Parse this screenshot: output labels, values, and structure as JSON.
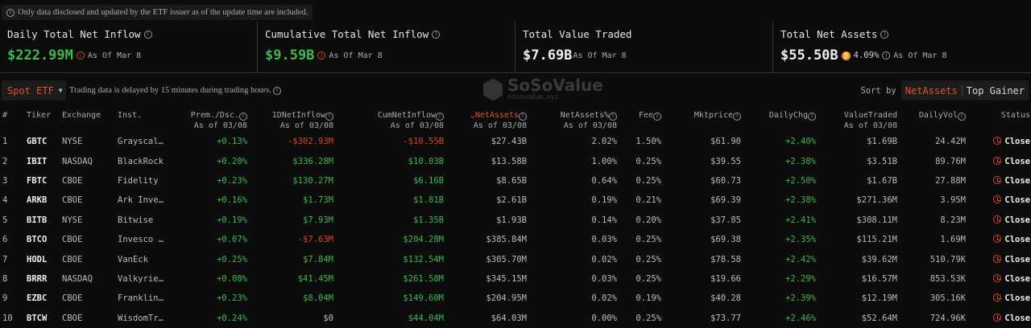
{
  "notice": "Only data disclosed and updated by the ETF issuer as of the update time are included.",
  "stats": [
    {
      "label": "Daily Total Net Inflow",
      "value": "$222.99M",
      "asof": "As Of Mar 8"
    },
    {
      "label": "Cumulative Total Net Inflow",
      "value": "$9.59B",
      "asof": "As Of Mar 8"
    },
    {
      "label": "Total Value Traded",
      "value": "$7.69B",
      "asof": "As Of Mar 8"
    },
    {
      "label": "Total Net Assets",
      "value": "$55.50B",
      "btc_pct": "4.09%",
      "asof": "As Of Mar 8"
    }
  ],
  "filter": {
    "selected": "Spot ETF",
    "delay_note": "Trading data is delayed by 15 minutes during trading hours."
  },
  "sort": {
    "label": "Sort by",
    "options": [
      "NetAssets",
      "Top Gainer"
    ],
    "active": "NetAssets"
  },
  "watermark": {
    "name": "SoSoValue",
    "url": "sosovalue.xyz"
  },
  "columns": [
    {
      "label": "#"
    },
    {
      "label": "Tiker"
    },
    {
      "label": "Exchange"
    },
    {
      "label": "Inst."
    },
    {
      "label": "Prem./Dsc.",
      "sub": "As of 03/08"
    },
    {
      "label": "1DNetInflow",
      "sub": "As of 03/08"
    },
    {
      "label": "CumNetInflow",
      "sub": "As of 03/08"
    },
    {
      "label": "NetAssets",
      "sub": "As of 03/08"
    },
    {
      "label": "NetAssets%",
      "sub": "As of 03/08"
    },
    {
      "label": "Fee"
    },
    {
      "label": "Mktprice"
    },
    {
      "label": "DailyChg"
    },
    {
      "label": "ValueTraded",
      "sub": "As of 03/08"
    },
    {
      "label": "DailyVol"
    },
    {
      "label": "Status"
    }
  ],
  "rows": [
    [
      "1",
      "GBTC",
      "NYSE",
      "Grayscal…",
      "+0.13%",
      "-$302.93M",
      "-$10.55B",
      "$27.43B",
      "2.02%",
      "1.50%",
      "$61.90",
      "+2.40%",
      "$1.69B",
      "24.42M",
      "Close"
    ],
    [
      "2",
      "IBIT",
      "NASDAQ",
      "BlackRock",
      "+0.20%",
      "$336.28M",
      "$10.03B",
      "$13.58B",
      "1.00%",
      "0.25%",
      "$39.55",
      "+2.38%",
      "$3.51B",
      "89.76M",
      "Close"
    ],
    [
      "3",
      "FBTC",
      "CBOE",
      "Fidelity",
      "+0.23%",
      "$130.27M",
      "$6.16B",
      "$8.65B",
      "0.64%",
      "0.25%",
      "$60.73",
      "+2.50%",
      "$1.67B",
      "27.88M",
      "Close"
    ],
    [
      "4",
      "ARKB",
      "CBOE",
      "Ark Inve…",
      "+0.16%",
      "$1.73M",
      "$1.81B",
      "$2.61B",
      "0.19%",
      "0.21%",
      "$69.39",
      "+2.38%",
      "$271.36M",
      "3.95M",
      "Close"
    ],
    [
      "5",
      "BITB",
      "NYSE",
      "Bitwise",
      "+0.19%",
      "$7.93M",
      "$1.35B",
      "$1.93B",
      "0.14%",
      "0.20%",
      "$37.85",
      "+2.41%",
      "$308.11M",
      "8.23M",
      "Close"
    ],
    [
      "6",
      "BTCO",
      "CBOE",
      "Invesco …",
      "+0.07%",
      "-$7.63M",
      "$204.28M",
      "$385.84M",
      "0.03%",
      "0.25%",
      "$69.38",
      "+2.35%",
      "$115.21M",
      "1.69M",
      "Close"
    ],
    [
      "7",
      "HODL",
      "CBOE",
      "VanEck",
      "+0.25%",
      "$7.84M",
      "$132.54M",
      "$305.70M",
      "0.02%",
      "0.25%",
      "$78.58",
      "+2.42%",
      "$39.62M",
      "510.79K",
      "Close"
    ],
    [
      "8",
      "BRRR",
      "NASDAQ",
      "Valkyrie…",
      "+0.08%",
      "$41.45M",
      "$261.58M",
      "$345.15M",
      "0.03%",
      "0.25%",
      "$19.66",
      "+2.29%",
      "$16.57M",
      "853.53K",
      "Close"
    ],
    [
      "9",
      "EZBC",
      "CBOE",
      "Franklin…",
      "+0.23%",
      "$8.04M",
      "$149.60M",
      "$204.95M",
      "0.02%",
      "0.19%",
      "$40.28",
      "+2.39%",
      "$12.19M",
      "305.16K",
      "Close"
    ],
    [
      "10",
      "BTCW",
      "CBOE",
      "WisdomTr…",
      "+0.24%",
      "$0",
      "$44.04M",
      "$64.03M",
      "0.00%",
      "0.25%",
      "$73.77",
      "+2.46%",
      "$52.64M",
      "724.96K",
      "Close"
    ]
  ],
  "colors": {
    "positive": "#3fb950",
    "negative": "#d9452b",
    "accent": "#e0532f"
  }
}
